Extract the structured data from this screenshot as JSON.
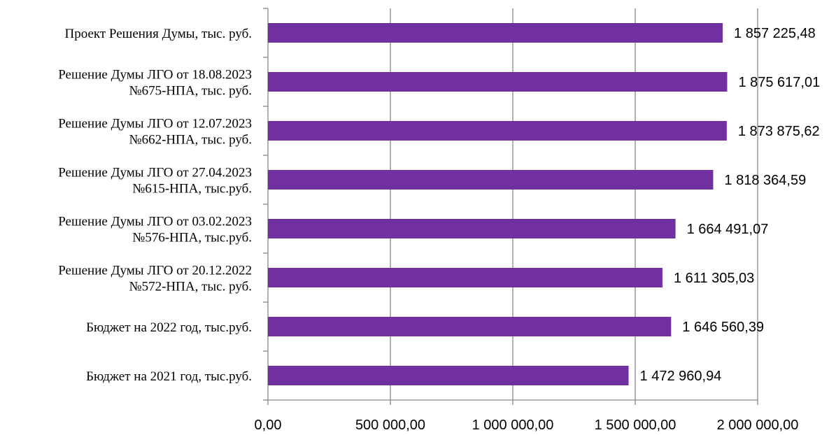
{
  "chart_data": {
    "type": "bar",
    "orientation": "horizontal",
    "categories": [
      [
        "Проект Решения Думы, тыс. руб."
      ],
      [
        "Решение Думы ЛГО от 18.08.2023",
        "№675-НПА, тыс. руб."
      ],
      [
        "Решение Думы ЛГО от 12.07.2023",
        "№662-НПА, тыс. руб."
      ],
      [
        "Решение Думы ЛГО от 27.04.2023",
        "№615-НПА, тыс.руб."
      ],
      [
        "Решение Думы ЛГО от 03.02.2023",
        "№576-НПА, тыс.руб."
      ],
      [
        "Решение Думы ЛГО от 20.12.2022",
        "№572-НПА, тыс. руб."
      ],
      [
        "Бюджет на 2022 год, тыс.руб."
      ],
      [
        "Бюджет на 2021 год, тыс.руб."
      ]
    ],
    "values": [
      1857225.48,
      1875617.01,
      1873875.62,
      1818364.59,
      1664491.07,
      1611305.03,
      1646560.39,
      1472960.94
    ],
    "data_labels": [
      "1 857 225,48",
      "1 875 617,01",
      "1 873 875,62",
      "1 818 364,59",
      "1 664 491,07",
      "1 611 305,03",
      "1 646 560,39",
      "1 472 960,94"
    ],
    "x_ticks": [
      0,
      500000,
      1000000,
      1500000,
      2000000
    ],
    "x_tick_labels": [
      "0,00",
      "500 000,00",
      "1 000 000,00",
      "1 500 000,00",
      "2 000 000,00"
    ],
    "xlim": [
      0,
      2000000
    ],
    "grid": true,
    "legend": "none",
    "bar_color": "#7030a0",
    "grid_color": "#878787",
    "title": "",
    "xlabel": "",
    "ylabel": ""
  }
}
